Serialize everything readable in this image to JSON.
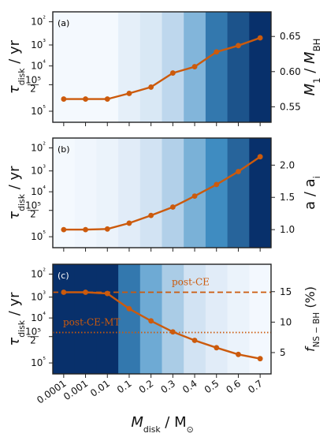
{
  "chart_data": {
    "type": "line",
    "x_categories": [
      "0.0001",
      "0.001",
      "0.01",
      "0.1",
      "0.2",
      "0.3",
      "0.4",
      "0.5",
      "0.6",
      "0.7"
    ],
    "x_label_main": "M",
    "x_label_sub": "disk",
    "x_label_unit_main": "M",
    "x_label_unit_sub": "⊙",
    "colors": {
      "line": "#cc5a0c",
      "frame": "#222222"
    },
    "panels": [
      {
        "label": "(a)",
        "label_color": "#000000",
        "left_ylabel_main": "τ",
        "left_ylabel_sub": "disk",
        "left_ylabel_unit": "yr",
        "left_ytick_labels": [
          "10²",
          "10³",
          "10⁴",
          "10⁵/2",
          "10⁵"
        ],
        "right_ylabel": "M₁ / M_BH",
        "right_ylim": [
          0.528,
          0.685
        ],
        "right_ticks": [
          "0.55",
          "0.60",
          "0.65"
        ],
        "heatmap_shades": [
          0.02,
          0.02,
          0.02,
          0.12,
          0.2,
          0.35,
          0.5,
          0.75,
          0.88,
          1.0
        ],
        "series": [
          {
            "values": [
              0.561,
              0.561,
              0.561,
              0.569,
              0.578,
              0.598,
              0.607,
              0.628,
              0.637,
              0.648
            ]
          }
        ]
      },
      {
        "label": "(b)",
        "label_color": "#000000",
        "left_ylabel_main": "τ",
        "left_ylabel_sub": "disk",
        "left_ylabel_unit": "yr",
        "left_ytick_labels": [
          "10²",
          "10³",
          "10⁴",
          "10⁵/2",
          "10⁵"
        ],
        "right_ylabel": "a / a",
        "right_ylabel_sub": "i",
        "right_ylim": [
          0.72,
          2.42
        ],
        "right_ticks": [
          "1.0",
          "1.5",
          "2.0"
        ],
        "heatmap_shades": [
          0.02,
          0.05,
          0.08,
          0.15,
          0.25,
          0.38,
          0.52,
          0.68,
          0.82,
          1.0
        ],
        "series": [
          {
            "values": [
              1.0,
              1.0,
              1.01,
              1.1,
              1.22,
              1.35,
              1.52,
              1.7,
              1.9,
              2.13
            ]
          }
        ]
      },
      {
        "label": "(c)",
        "label_color": "#ffffff",
        "left_ylabel_main": "τ",
        "left_ylabel_sub": "disk",
        "left_ylabel_unit": "yr",
        "left_ytick_labels": [
          "10²",
          "10³",
          "10⁴",
          "10⁵/2",
          "10⁵"
        ],
        "right_ylabel": "f",
        "right_ylabel_sub": "NS − BH",
        "right_ylabel_unit": "(%)",
        "right_ylim": [
          1.5,
          19.5
        ],
        "right_ticks": [
          "5",
          "10",
          "15"
        ],
        "heatmap_shades": [
          1.0,
          1.0,
          1.0,
          0.75,
          0.55,
          0.4,
          0.25,
          0.15,
          0.08,
          0.03
        ],
        "series": [
          {
            "values": [
              14.9,
              14.9,
              14.7,
              12.2,
              10.2,
              8.4,
              7.0,
              5.8,
              4.7,
              4.0
            ]
          }
        ],
        "hlines": [
          {
            "label": "post-CE",
            "value": 14.9,
            "style": "dashed"
          },
          {
            "label": "post-CE-MT",
            "value": 8.3,
            "style": "dotted"
          }
        ]
      }
    ]
  }
}
